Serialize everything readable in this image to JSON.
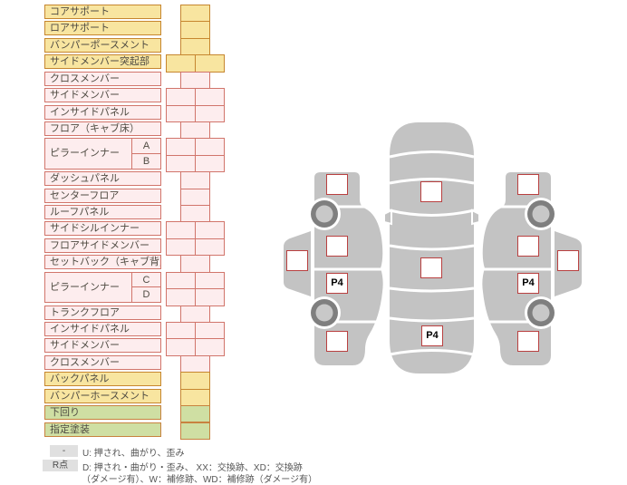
{
  "table": {
    "rows": [
      {
        "label": "コアサポート",
        "color": "yellow",
        "cells": "single"
      },
      {
        "label": "ロアサポート",
        "color": "yellow",
        "cells": "single"
      },
      {
        "label": "バンパーポースメント",
        "color": "yellow",
        "cells": "single"
      },
      {
        "label": "サイドメンバー突起部",
        "color": "yellow",
        "cells": "double"
      },
      {
        "label": "クロスメンバー",
        "color": "pink",
        "cells": "single"
      },
      {
        "label": "サイドメンバー",
        "color": "pink",
        "cells": "double"
      },
      {
        "label": "インサイドパネル",
        "color": "pink",
        "cells": "double"
      },
      {
        "label": "フロア（キャブ床）",
        "color": "pink",
        "cells": "single"
      },
      {
        "label": "ピラーインナー",
        "color": "pink",
        "cells": "double",
        "subrows": [
          "A",
          "B"
        ]
      },
      {
        "label": "ダッシュパネル",
        "color": "pink",
        "cells": "single"
      },
      {
        "label": "センターフロア",
        "color": "pink",
        "cells": "single"
      },
      {
        "label": "ルーフパネル",
        "color": "pink",
        "cells": "single"
      },
      {
        "label": "サイドシルインナー",
        "color": "pink",
        "cells": "double"
      },
      {
        "label": "フロアサイドメンバー",
        "color": "pink",
        "cells": "double"
      },
      {
        "label": "セットバック（キャブ背）",
        "color": "pink",
        "cells": "single"
      },
      {
        "label": "ピラーインナー",
        "color": "pink",
        "cells": "double",
        "subrows": [
          "C",
          "D"
        ]
      },
      {
        "label": "トランクフロア",
        "color": "pink",
        "cells": "single"
      },
      {
        "label": "インサイドパネル",
        "color": "pink",
        "cells": "double"
      },
      {
        "label": "サイドメンバー",
        "color": "pink",
        "cells": "double"
      },
      {
        "label": "クロスメンバー",
        "color": "pink",
        "cells": "single"
      },
      {
        "label": "バックパネル",
        "color": "yellow",
        "cells": "single"
      },
      {
        "label": "バンパーホースメント",
        "color": "yellow",
        "cells": "single"
      },
      {
        "label": "下回り",
        "color": "green",
        "cells": "single"
      },
      {
        "label": "指定塗装",
        "color": "green",
        "cells": "single"
      }
    ]
  },
  "diagram": {
    "markers": [
      {
        "view": "left",
        "slot": "front",
        "label": ""
      },
      {
        "view": "left",
        "slot": "center",
        "label": ""
      },
      {
        "view": "left",
        "slot": "quarter",
        "label": "P4"
      },
      {
        "view": "left",
        "slot": "rear",
        "label": ""
      },
      {
        "view": "left",
        "slot": "bumper",
        "label": ""
      },
      {
        "view": "top",
        "slot": "hood",
        "label": ""
      },
      {
        "view": "top",
        "slot": "roof",
        "label": ""
      },
      {
        "view": "top",
        "slot": "trunk",
        "label": "P4"
      },
      {
        "view": "right",
        "slot": "front",
        "label": ""
      },
      {
        "view": "right",
        "slot": "center",
        "label": ""
      },
      {
        "view": "right",
        "slot": "quarter",
        "label": "P4"
      },
      {
        "view": "right",
        "slot": "rear",
        "label": ""
      },
      {
        "view": "right",
        "slot": "bumper",
        "label": ""
      }
    ]
  },
  "legend": {
    "rows": [
      {
        "badge": "-",
        "text": "U: 押され、曲がり、歪み"
      },
      {
        "badge": "R点",
        "text": "D: 押され・曲がり・歪み、 XX：交換跡、XD：交換跡",
        "text2": "（ダメージ有）、W：補修跡、WD：補修跡（ダメージ有）"
      }
    ]
  },
  "colors": {
    "yellow_fill": "#f8e5a0",
    "yellow_border": "#c6862f",
    "pink_fill": "#fdedee",
    "pink_border": "#d1756b",
    "green_fill": "#cfdfa3",
    "green_border": "#c8823f",
    "marker_border": "#b94040",
    "car_body": "#c3c3c3",
    "wheel_ring": "#7f7f7f",
    "wheel_hub": "#c8c8c8",
    "badge_bg": "#e0e0e0",
    "text": "#4f4b42"
  }
}
